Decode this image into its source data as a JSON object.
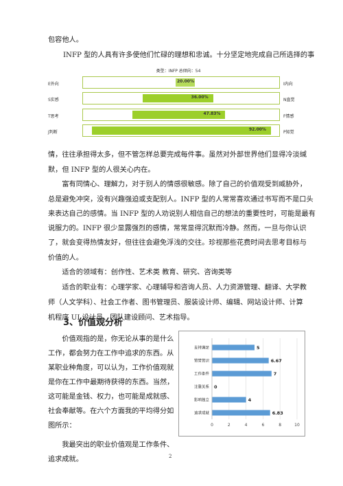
{
  "paragraphs_top": [
    "包容他人。",
    "INFP 型的人具有许多使他们忙碌的理想和忠诚。十分坚定地完成自己所选择的事"
  ],
  "mbti_chart": {
    "title": "类型：INFP 总倾向：54",
    "rows": [
      {
        "left": "E外向",
        "right": "I内向",
        "value": 20.0,
        "label": "20.00%"
      },
      {
        "left": "S实感",
        "right": "N直觉",
        "value": 36.0,
        "label": "36.00%"
      },
      {
        "left": "T思考",
        "right": "F情感",
        "value": 47.83,
        "label": "47.83%"
      },
      {
        "left": "J判断",
        "right": "P知觉",
        "value": 92.0,
        "label": "92.00%"
      }
    ]
  },
  "paragraphs_mid": [
    "情，往往承担得太多，但不管怎样总要完成每件事。虽然对外部世界他们显得冷淡缄",
    "默，但 INFP 型的人很关心内在。",
    "　　富有同情心、理解力，对于别人的情感很敏感。除了自己的价值观受到威胁外，",
    "总是避免冲突，没有兴趣强迫或支配别人。INFP 型的人常常喜欢通过书写而不是口头",
    "来表达自己的感情。当 INFP 型的人劝说别人相信自己的想法的重要性时，可能是最有",
    "说服力的。INFP 很少显露强烈的感情，常常显得沉默而冷静。然而，一旦与你认识",
    "了，就会变得热情友好，但往往会避免浮浅的交往。珍视那些花费时间去思考目标与",
    "价值的人。",
    "　　适合的领域有：创作性、艺术类  教育、研究、咨询类等",
    "　　适合的职业有：心理学家、心理辅导和咨询人员、人力资源管理、翻译、大学教",
    "师（人文学科）、社会工作者、图书管理员、服装设计师、编辑、网站设计师、计算",
    "机程序 UI 设计员、团队建设顾问、艺术指导。"
  ],
  "section_title": "3、价值观分析",
  "paragraphs_bottom": [
    "　　价值观指的是，你无论从事的是什么",
    "工作，都会努力在工作中追求的东西。从",
    "某职业种角度，可以认为，工作价值观就",
    "是你在工作中最期待获得的东西。当然，",
    "这可能是金钱、权力，也可能是成就感、",
    "社会奉献等。在六个方面我的平均得分如",
    "图所示：",
    "　　我最突出的职业价值观是工作条件、",
    "追求成就。"
  ],
  "chart_data": {
    "type": "bar",
    "orientation": "horizontal",
    "categories": [
      "支持满足",
      "赞誉赏识",
      "工作条件",
      "注重关系",
      "影响独立",
      "追求成就"
    ],
    "values": [
      5,
      6.67,
      7,
      0,
      4,
      6.83
    ],
    "value_labels": [
      "5",
      "6.67",
      "7",
      "0",
      "4",
      "6.83"
    ],
    "xlim": [
      0,
      10
    ],
    "xticks": [
      "0",
      "2",
      "4",
      "6",
      "8",
      "10"
    ],
    "grid": true,
    "color": "#5b9bd5"
  },
  "page_number": "2"
}
